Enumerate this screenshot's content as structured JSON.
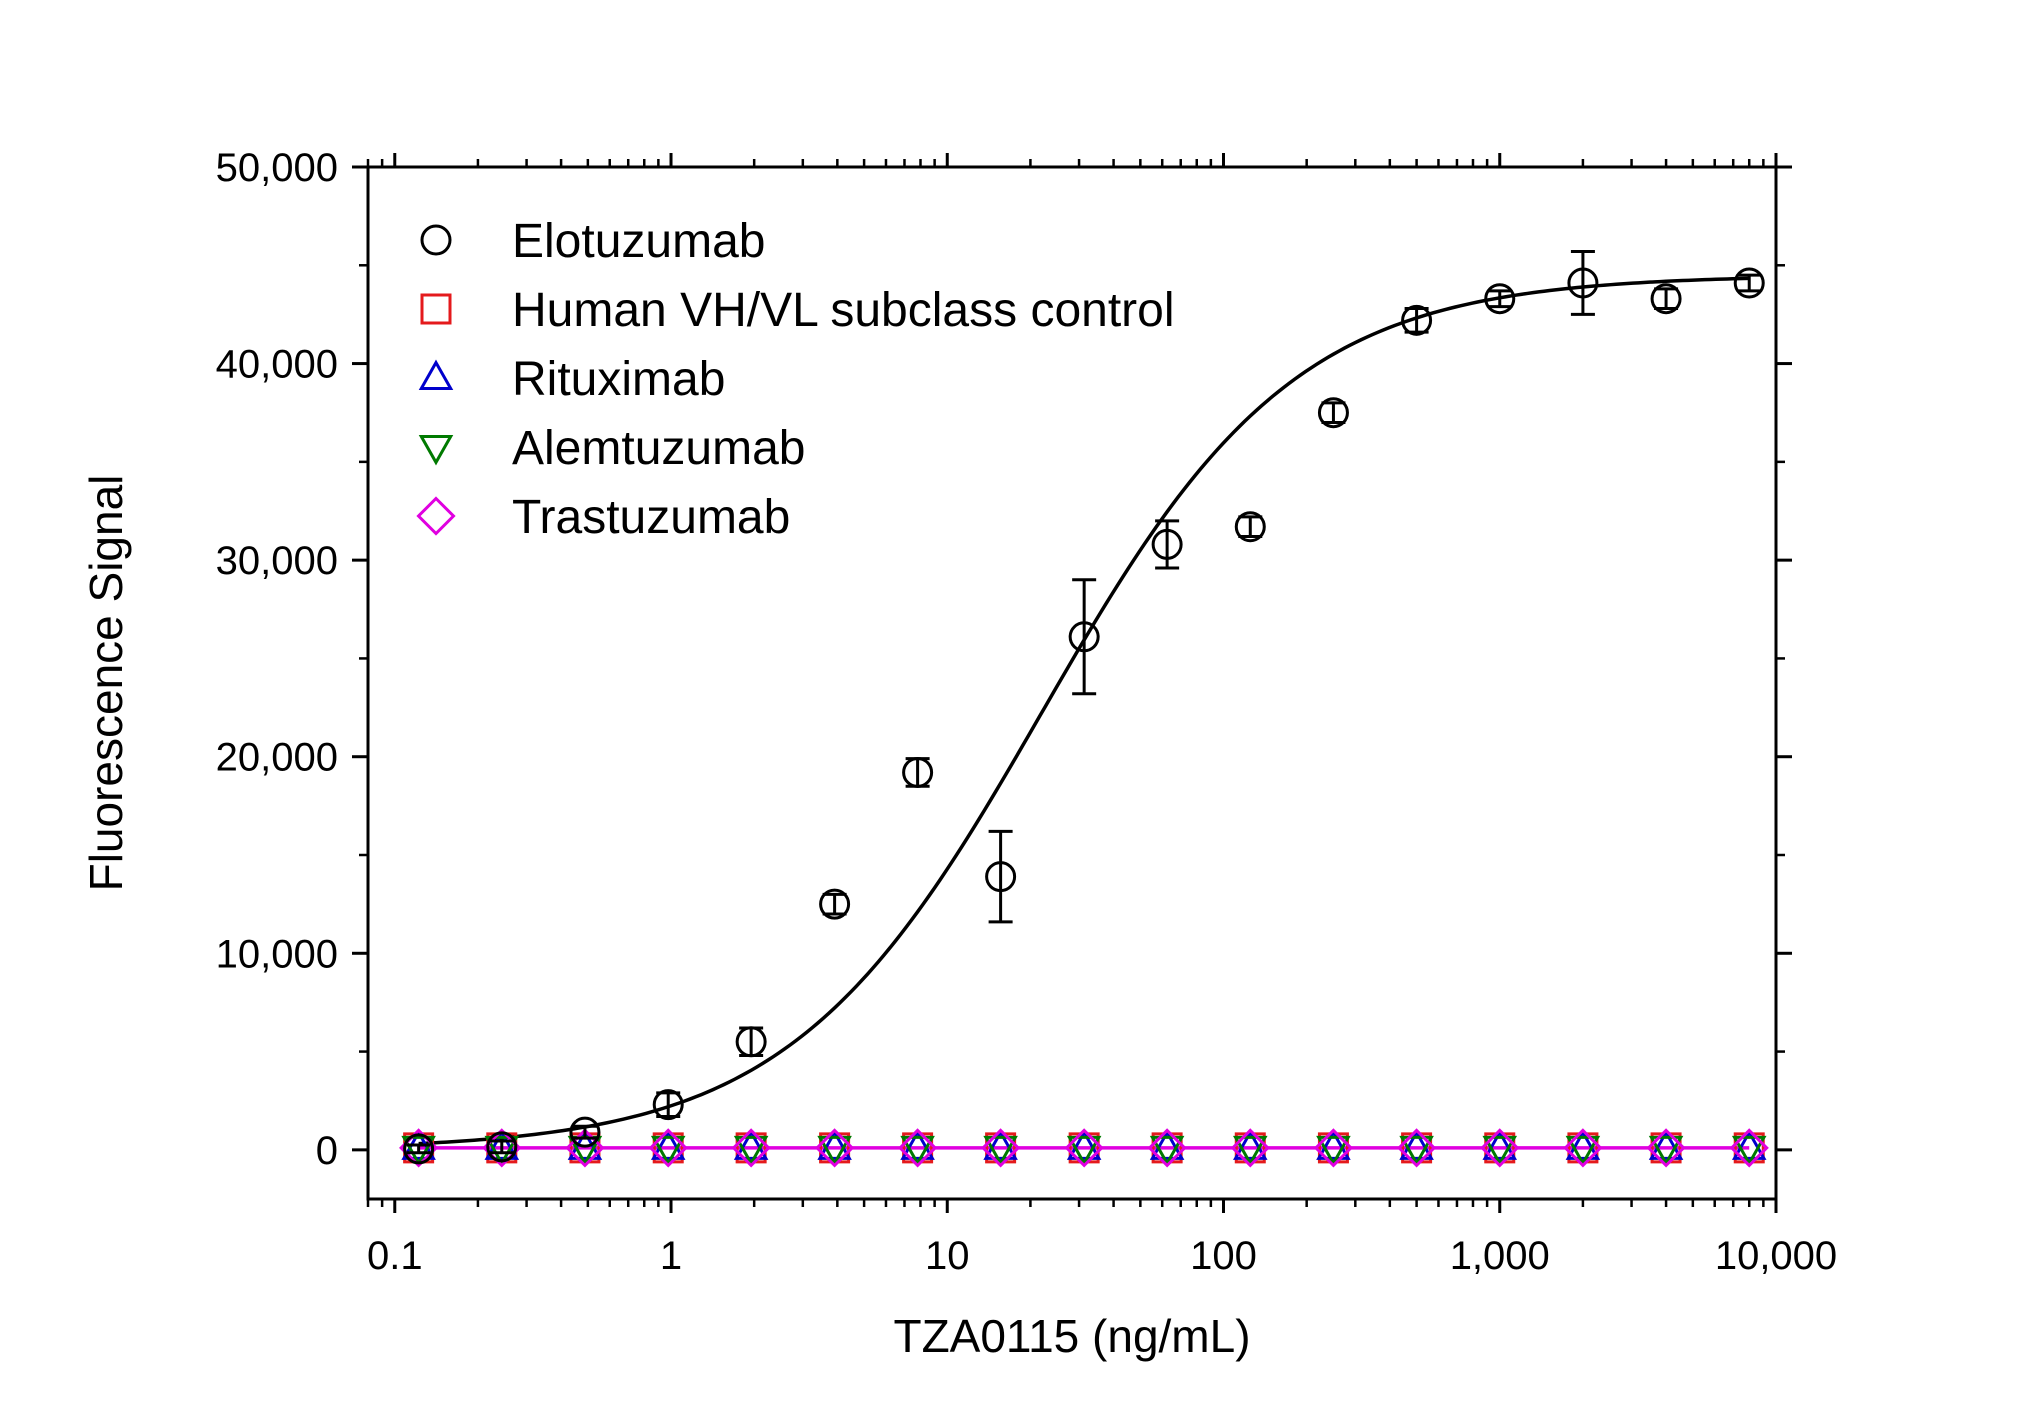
{
  "chart_data": {
    "type": "scatter",
    "xlabel": "TZA0115 (ng/mL)",
    "ylabel": "Fluorescence Signal",
    "xscale": "log",
    "xlim": [
      0.08,
      10000
    ],
    "ylim": [
      -2500,
      50000
    ],
    "x_ticks": [
      {
        "value": 0.1,
        "label": "0.1"
      },
      {
        "value": 1,
        "label": "1"
      },
      {
        "value": 10,
        "label": "10"
      },
      {
        "value": 100,
        "label": "100"
      },
      {
        "value": 1000,
        "label": "1,000"
      },
      {
        "value": 10000,
        "label": "10,000"
      }
    ],
    "y_ticks": [
      {
        "value": 0,
        "label": "0"
      },
      {
        "value": 10000,
        "label": "10,000"
      },
      {
        "value": 20000,
        "label": "20,000"
      },
      {
        "value": 30000,
        "label": "30,000"
      },
      {
        "value": 40000,
        "label": "40,000"
      },
      {
        "value": 50000,
        "label": "50,000"
      }
    ],
    "legend_position": "top-left",
    "grid": false,
    "x": [
      0.122,
      0.244,
      0.488,
      0.977,
      1.95,
      3.91,
      7.81,
      15.6,
      31.3,
      62.5,
      125,
      250,
      500,
      1000,
      2000,
      4000,
      8000
    ],
    "series": [
      {
        "name": "Elotuzumab",
        "marker": "circle",
        "color": "#000000",
        "values": [
          50,
          150,
          900,
          2300,
          5500,
          12500,
          19200,
          13900,
          26100,
          30800,
          31700,
          37500,
          42200,
          43300,
          44100,
          43300,
          44100
        ],
        "errors": [
          200,
          300,
          300,
          600,
          700,
          500,
          700,
          2300,
          2900,
          1200,
          500,
          500,
          600,
          400,
          1600,
          500,
          400
        ]
      },
      {
        "name": "Human VH/VL subclass control",
        "marker": "square",
        "color": "#e41a1c",
        "values": [
          100,
          100,
          100,
          100,
          100,
          100,
          100,
          100,
          100,
          100,
          100,
          100,
          100,
          100,
          100,
          100,
          100
        ]
      },
      {
        "name": "Rituximab",
        "marker": "triangle-up",
        "color": "#0000cc",
        "values": [
          100,
          100,
          100,
          100,
          100,
          100,
          100,
          100,
          100,
          100,
          100,
          100,
          100,
          100,
          100,
          100,
          100
        ]
      },
      {
        "name": "Alemtuzumab",
        "marker": "triangle-down",
        "color": "#007a00",
        "values": [
          100,
          100,
          100,
          100,
          100,
          100,
          100,
          100,
          100,
          100,
          100,
          100,
          100,
          100,
          100,
          100,
          100
        ]
      },
      {
        "name": "Trastuzumab",
        "marker": "diamond",
        "color": "#e000e0",
        "values": [
          100,
          100,
          100,
          100,
          100,
          100,
          100,
          100,
          100,
          100,
          100,
          100,
          100,
          100,
          100,
          100,
          100
        ]
      }
    ],
    "fit_curves": [
      {
        "series": "Elotuzumab",
        "model": "4PL",
        "bottom": 0,
        "top": 44500,
        "ec50": 22,
        "hill": 0.95,
        "color": "#000000"
      },
      {
        "series": "Trastuzumab",
        "model": "constant",
        "value": 100,
        "color": "#e000e0"
      }
    ]
  }
}
